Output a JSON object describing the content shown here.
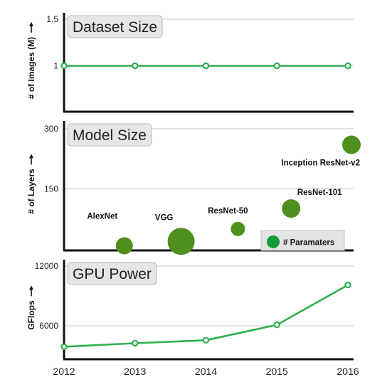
{
  "chart_data": [
    {
      "type": "line",
      "title": "Dataset Size",
      "ylabel": "# of Images (M)",
      "y_ticks": [
        {
          "value": 1,
          "label": "1"
        },
        {
          "value": 1.5,
          "label": "1.5"
        }
      ],
      "ylim": [
        0.5,
        1.5
      ],
      "x": [
        2012,
        2013,
        2014,
        2015,
        2016
      ],
      "values": [
        1,
        1,
        1,
        1,
        1
      ],
      "marker": "hollow-circle",
      "color": "#2eae4f",
      "grid": true
    },
    {
      "type": "scatter",
      "title": "Model Size",
      "ylabel": "# of Layers",
      "y_ticks": [
        {
          "value": 150,
          "label": "150"
        },
        {
          "value": 300,
          "label": "300"
        }
      ],
      "ylim": [
        0,
        300
      ],
      "points": [
        {
          "label": "AlexNet",
          "x": 2012.85,
          "y": 8,
          "size": 12
        },
        {
          "label": "VGG",
          "x": 2013.65,
          "y": 19,
          "size": 19
        },
        {
          "label": "ResNet-50",
          "x": 2014.45,
          "y": 50,
          "size": 10
        },
        {
          "label": "ResNet-101",
          "x": 2015.2,
          "y": 101,
          "size": 13
        },
        {
          "label": "Inception ResNet-v2",
          "x": 2016.05,
          "y": 260,
          "size": 13
        }
      ],
      "legend": {
        "label": "# Paramaters",
        "position": "bottom-right",
        "color": "#139b3a"
      },
      "color": "#4f8f1e",
      "grid": true
    },
    {
      "type": "line",
      "title": "GPU Power",
      "ylabel": "GFlops",
      "y_ticks": [
        {
          "value": 6000,
          "label": "6000"
        },
        {
          "value": 12000,
          "label": "12000"
        }
      ],
      "ylim": [
        3000,
        12000
      ],
      "x": [
        2012,
        2013,
        2014,
        2015,
        2016
      ],
      "values": [
        3900,
        4250,
        4550,
        6100,
        10100
      ],
      "marker": "hollow-circle",
      "color": "#2eae4f",
      "grid": true
    }
  ],
  "x_axis": {
    "ticks": [
      "2012",
      "2013",
      "2014",
      "2015",
      "2016"
    ],
    "values": [
      2012,
      2013,
      2014,
      2015,
      2016
    ]
  }
}
